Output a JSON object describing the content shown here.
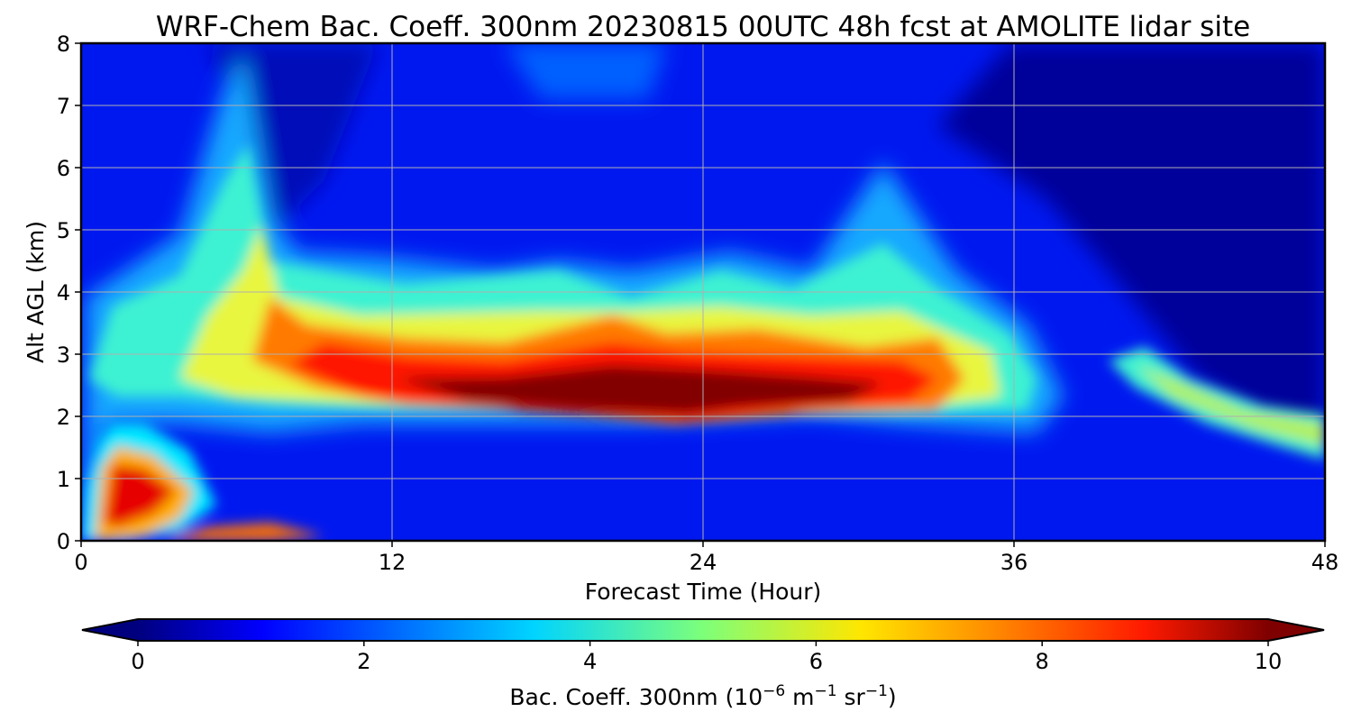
{
  "chart_data": {
    "type": "heatmap",
    "title": "WRF-Chem Bac. Coeff. 300nm  20230815 00UTC 48h fcst at AMOLITE lidar site",
    "xlabel": "Forecast Time (Hour)",
    "ylabel": "Alt AGL (km)",
    "xlim": [
      0,
      48
    ],
    "ylim": [
      0,
      8
    ],
    "x_ticks": [
      "0",
      "12",
      "24",
      "36",
      "48"
    ],
    "y_ticks": [
      "0",
      "1",
      "2",
      "3",
      "4",
      "5",
      "6",
      "7",
      "8"
    ],
    "grid": true,
    "colorscale": "jet",
    "colorbar": {
      "label_main": "Bac. Coeff. 300nm  (10",
      "label_exp1": "−6",
      "label_mid": " m",
      "label_exp2": "−1",
      "label_mid2": " sr",
      "label_exp3": "−1",
      "label_end": ")",
      "range": [
        0,
        10
      ],
      "ticks": [
        "0",
        "2",
        "4",
        "6",
        "8",
        "10"
      ],
      "extend": "both",
      "placement": "bottom"
    },
    "features": [
      {
        "name": "elevated aerosol layer",
        "x_range": [
          7,
          34
        ],
        "altitude_km": [
          2.0,
          3.3
        ],
        "peak_value": 10
      },
      {
        "name": "near-surface plume",
        "x_range": [
          0.5,
          5
        ],
        "altitude_km": [
          0.2,
          1.6
        ],
        "peak_value": 8.5
      },
      {
        "name": "descending late layer",
        "x_range": [
          40,
          48
        ],
        "altitude_km": [
          1.6,
          2.8
        ],
        "peak_value": 5
      }
    ]
  }
}
